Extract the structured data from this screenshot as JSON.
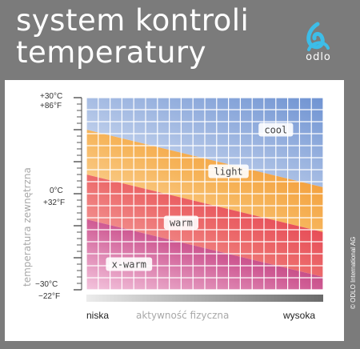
{
  "header": {
    "title_line1": "system kontroli",
    "title_line2": "temperatury",
    "logo_text": "odlo",
    "logo_icon": "odlo-swirl-icon"
  },
  "copyright": "© ODLO International AG",
  "colors": {
    "frame": "#7b7b7b",
    "cool": "#7f9fd6",
    "light": "#f3962b",
    "warm": "#e4404f",
    "x_warm": "#b8306a"
  },
  "chart_data": {
    "type": "area",
    "ylabel": "temperatura zewnętrzna",
    "xlabel": "aktywność fizyczna",
    "x_labels": {
      "low": "niska",
      "high": "wysoka"
    },
    "y_axis": {
      "range_celsius": [
        -30,
        30
      ],
      "tick_labels": [
        {
          "celsius": 30,
          "text_c": "+30°C",
          "text_f": "+86°F"
        },
        {
          "celsius": 0,
          "text_c": "0°C",
          "text_f": "+32°F"
        },
        {
          "celsius": -30,
          "text_c": "−30°C",
          "text_f": "−22°F"
        }
      ]
    },
    "x_range": [
      0,
      1
    ],
    "grid": true,
    "zones": [
      {
        "name": "cool",
        "label": "cool",
        "upper_left": 30,
        "upper_right": 30,
        "lower_left": 20,
        "lower_right": 2
      },
      {
        "name": "light",
        "label": "light",
        "upper_left": 20,
        "upper_right": 2,
        "lower_left": 6,
        "lower_right": -12
      },
      {
        "name": "warm",
        "label": "warm",
        "upper_left": 6,
        "upper_right": -12,
        "lower_left": -8,
        "lower_right": -26
      },
      {
        "name": "x-warm",
        "label": "x-warm",
        "upper_left": -8,
        "upper_right": -26,
        "lower_left": -30,
        "lower_right": -30
      }
    ],
    "zone_label_positions": [
      {
        "zone": "cool",
        "activity": 0.8,
        "celsius": 20
      },
      {
        "zone": "light",
        "activity": 0.6,
        "celsius": 7
      },
      {
        "zone": "warm",
        "activity": 0.4,
        "celsius": -9
      },
      {
        "zone": "x-warm",
        "activity": 0.18,
        "celsius": -22
      }
    ]
  }
}
